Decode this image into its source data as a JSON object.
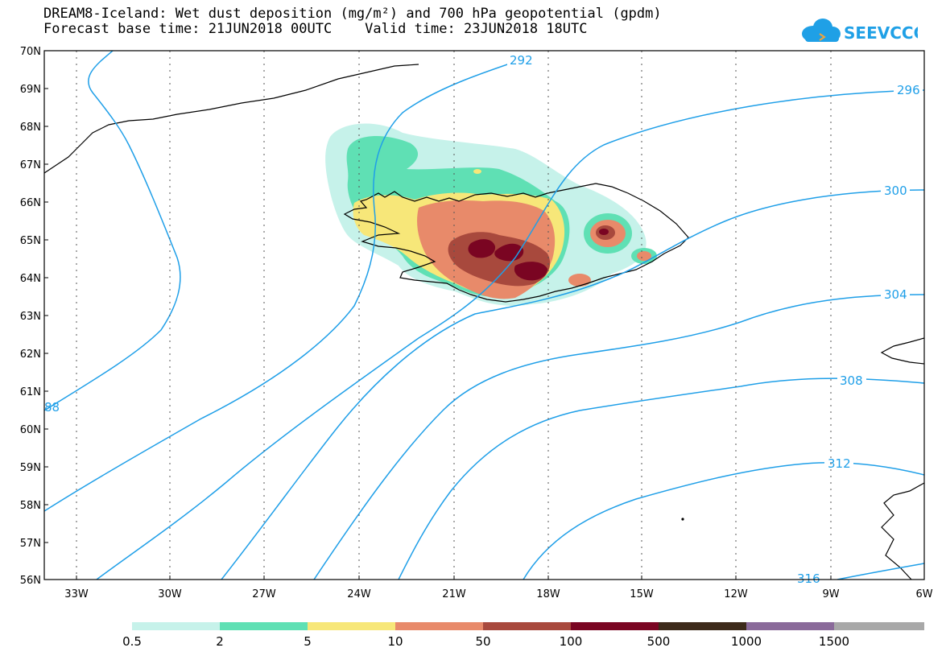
{
  "header": {
    "title_line1": "DREAM8-Iceland: Wet dust deposition (mg/m²) and 700 hPa geopotential (gpdm)",
    "title_line2": "Forecast base time: 21JUN2018 00UTC    Valid time: 23JUN2018 18UTC"
  },
  "logo": {
    "text": "SEEVCCC",
    "color": "#1fa0e6"
  },
  "map": {
    "lat_labels": [
      "70N",
      "69N",
      "68N",
      "67N",
      "66N",
      "65N",
      "64N",
      "63N",
      "62N",
      "61N",
      "60N",
      "59N",
      "58N",
      "57N",
      "56N"
    ],
    "lon_labels": [
      "33W",
      "30W",
      "27W",
      "24W",
      "21W",
      "18W",
      "15W",
      "12W",
      "9W",
      "6W"
    ],
    "contour_labels": [
      "292",
      "296",
      "300",
      "304",
      "308",
      "312",
      "316",
      "88"
    ],
    "contour_color": "#1f9fe8"
  },
  "colorbar": {
    "colors": [
      "#c6f2ea",
      "#5fe0b4",
      "#f7e779",
      "#e88a6a",
      "#a8493d",
      "#7a0522",
      "#3d2a1a",
      "#8a6a9a",
      "#a8a8a8"
    ],
    "labels": [
      "0.5",
      "2",
      "5",
      "10",
      "50",
      "100",
      "500",
      "1000",
      "1500"
    ]
  }
}
